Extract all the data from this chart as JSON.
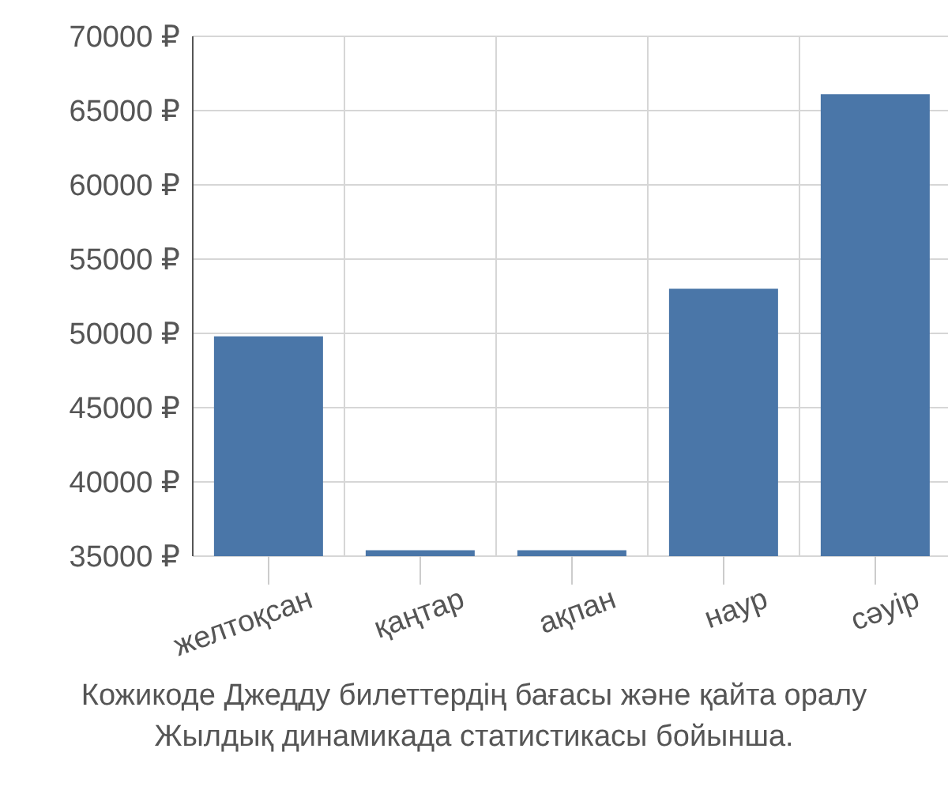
{
  "chart_data": {
    "type": "bar",
    "categories": [
      "желтоқсан",
      "қаңтар",
      "ақпан",
      "наур",
      "сәуір"
    ],
    "values": [
      49800,
      35400,
      35400,
      53000,
      66100
    ],
    "color": "#4a76a8",
    "ylim": [
      35000,
      70000
    ],
    "yticks": [
      {
        "value": 35000,
        "label": "35000 ₽"
      },
      {
        "value": 40000,
        "label": "40000 ₽"
      },
      {
        "value": 45000,
        "label": "45000 ₽"
      },
      {
        "value": 50000,
        "label": "50000 ₽"
      },
      {
        "value": 55000,
        "label": "55000 ₽"
      },
      {
        "value": 60000,
        "label": "60000 ₽"
      },
      {
        "value": 65000,
        "label": "65000 ₽"
      },
      {
        "value": 70000,
        "label": "70000 ₽"
      }
    ],
    "grid": true,
    "annotations": [
      "Кожикоде Джедду билеттердің бағасы және қайта оралу",
      "Жылдық динамикада статистикасы бойынша."
    ]
  }
}
